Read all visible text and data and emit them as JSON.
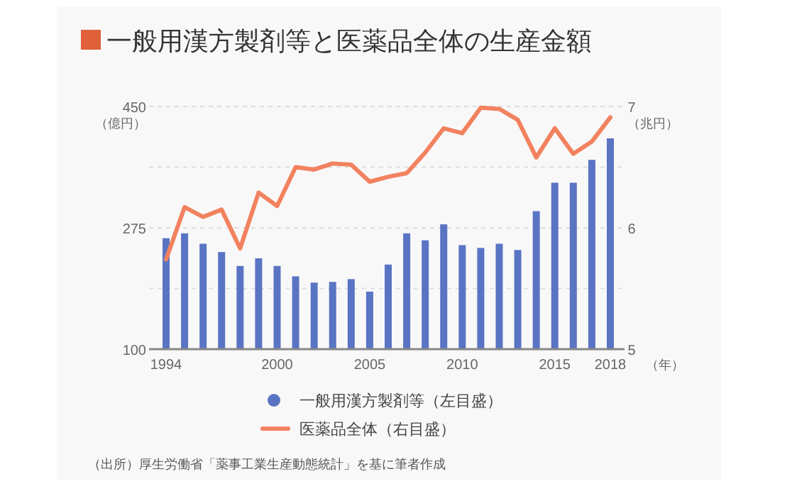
{
  "chart_data": {
    "type": "bar",
    "title": "一般用漢方製剤等と医薬品全体の生産金額",
    "x": [
      1994,
      1995,
      1996,
      1997,
      1998,
      1999,
      2000,
      2001,
      2002,
      2003,
      2004,
      2005,
      2006,
      2007,
      2008,
      2009,
      2010,
      2011,
      2012,
      2013,
      2014,
      2015,
      2016,
      2017,
      2018
    ],
    "series": [
      {
        "name": "一般用漢方製剤等（左目盛）",
        "color": "#5a74c4",
        "values": [
          260,
          267,
          252,
          240,
          220,
          231,
          220,
          205,
          196,
          197,
          201,
          183,
          222,
          267,
          257,
          280,
          250,
          246,
          252,
          243,
          299,
          340,
          340,
          373,
          404
        ]
      },
      {
        "name": "医薬品全体（右目盛）",
        "type": "line",
        "axis": "y2",
        "color": "#f2825f",
        "values": [
          5.74,
          6.17,
          6.09,
          6.15,
          5.83,
          6.29,
          6.18,
          6.5,
          6.48,
          6.53,
          6.52,
          6.38,
          6.42,
          6.45,
          6.62,
          6.82,
          6.78,
          6.99,
          6.98,
          6.89,
          6.58,
          6.82,
          6.61,
          6.71,
          6.91
        ]
      }
    ],
    "xlim": [
      1994,
      2018
    ],
    "xticks": [
      1994,
      2000,
      2005,
      2010,
      2015,
      2018
    ],
    "ylim": [
      100,
      450
    ],
    "yticks": [
      100,
      {
        "value": 187.5,
        "label": null
      },
      275,
      {
        "value": 362.5,
        "label": null
      },
      450
    ],
    "y2lim": [
      5,
      7
    ],
    "y2ticks": [
      5,
      6,
      7
    ],
    "xlabel": "（年）",
    "ylabel": "（億円）",
    "y2label": "（兆円）",
    "grid": "y",
    "legend": "bottom",
    "annotations": [
      "（出所）厚生労働省「薬事工業生産動態統計」を基に筆者作成"
    ]
  }
}
